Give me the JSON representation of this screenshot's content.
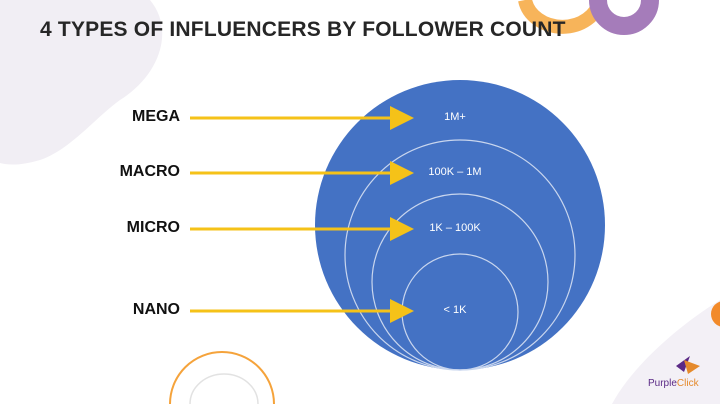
{
  "title": "4 TYPES OF INFLUENCERS BY FOLLOWER COUNT",
  "tiers": [
    {
      "label": "MEGA",
      "range": "1M+"
    },
    {
      "label": "MACRO",
      "range": "100K – 1M"
    },
    {
      "label": "MICRO",
      "range": "1K – 100K"
    },
    {
      "label": "NANO",
      "range": "< 1K"
    }
  ],
  "brand": {
    "name_part1": "Purple",
    "name_part2": "Click"
  },
  "colors": {
    "circle": "#4472c4",
    "arrow": "#f5c218",
    "ring": "#c9d6ee",
    "accent_orange": "#f5a33b",
    "accent_purple": "#9d6fb0",
    "blob": "#f1eef4"
  }
}
